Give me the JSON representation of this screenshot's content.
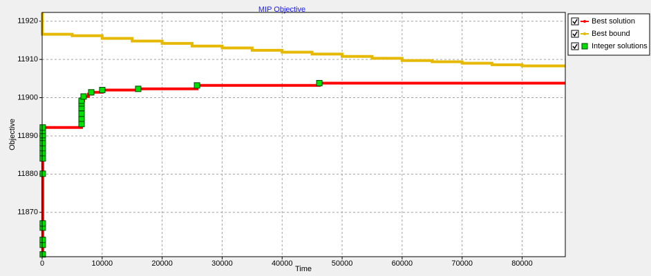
{
  "chart_data": {
    "type": "step",
    "title": "MIP Objective",
    "x_label": "Time",
    "y_label": "Objective",
    "xlim": [
      0,
      87200
    ],
    "ylim": [
      11858.4,
      11922.3
    ],
    "xticks": [
      0,
      10000,
      20000,
      30000,
      40000,
      50000,
      60000,
      70000,
      80000
    ],
    "yticks": [
      11870,
      11880,
      11890,
      11900,
      11910,
      11920
    ],
    "grid": true,
    "legend": "right",
    "series": [
      {
        "name": "Best solution",
        "color": "#ff0000",
        "style": "line",
        "x": [
          0,
          100,
          6570,
          6910,
          7720,
          8180,
          10020,
          16010,
          25810,
          46200,
          87200
        ],
        "values": [
          11859.0,
          11892.2,
          11899.2,
          11900.3,
          11900.9,
          11901.4,
          11902.0,
          11902.3,
          11903.2,
          11903.8,
          11903.8
        ]
      },
      {
        "name": "Best bound",
        "color": "#e6b800",
        "style": "line",
        "x": [
          0,
          0,
          5000,
          10000,
          15000,
          20000,
          25000,
          30000,
          35000,
          40000,
          45000,
          50000,
          55000,
          60000,
          65000,
          70000,
          75000,
          80000,
          87200
        ],
        "values": [
          11922.3,
          11916.6,
          11916.2,
          11915.5,
          11914.8,
          11914.2,
          11913.5,
          11913.0,
          11912.4,
          11911.9,
          11911.4,
          11910.8,
          11910.3,
          11909.7,
          11909.4,
          11909.0,
          11908.6,
          11908.3,
          11908.3
        ]
      },
      {
        "name": "Integer solutions",
        "color": "#00e000",
        "style": "markers",
        "x": [
          100,
          100,
          100,
          100,
          100,
          100,
          100,
          100,
          100,
          100,
          100,
          100,
          100,
          100,
          6570,
          6570,
          6570,
          6570,
          6570,
          6570,
          6910,
          8180,
          10020,
          16010,
          25810,
          46200
        ],
        "values": [
          11859.0,
          11861.5,
          11862.8,
          11866.0,
          11867.1,
          11880.1,
          11884.1,
          11885.5,
          11886.8,
          11888.1,
          11889.5,
          11890.2,
          11891.3,
          11892.2,
          11893.1,
          11894.5,
          11895.8,
          11897.3,
          11898.5,
          11899.2,
          11900.3,
          11901.4,
          11902.0,
          11902.3,
          11903.2,
          11903.8
        ]
      }
    ]
  }
}
